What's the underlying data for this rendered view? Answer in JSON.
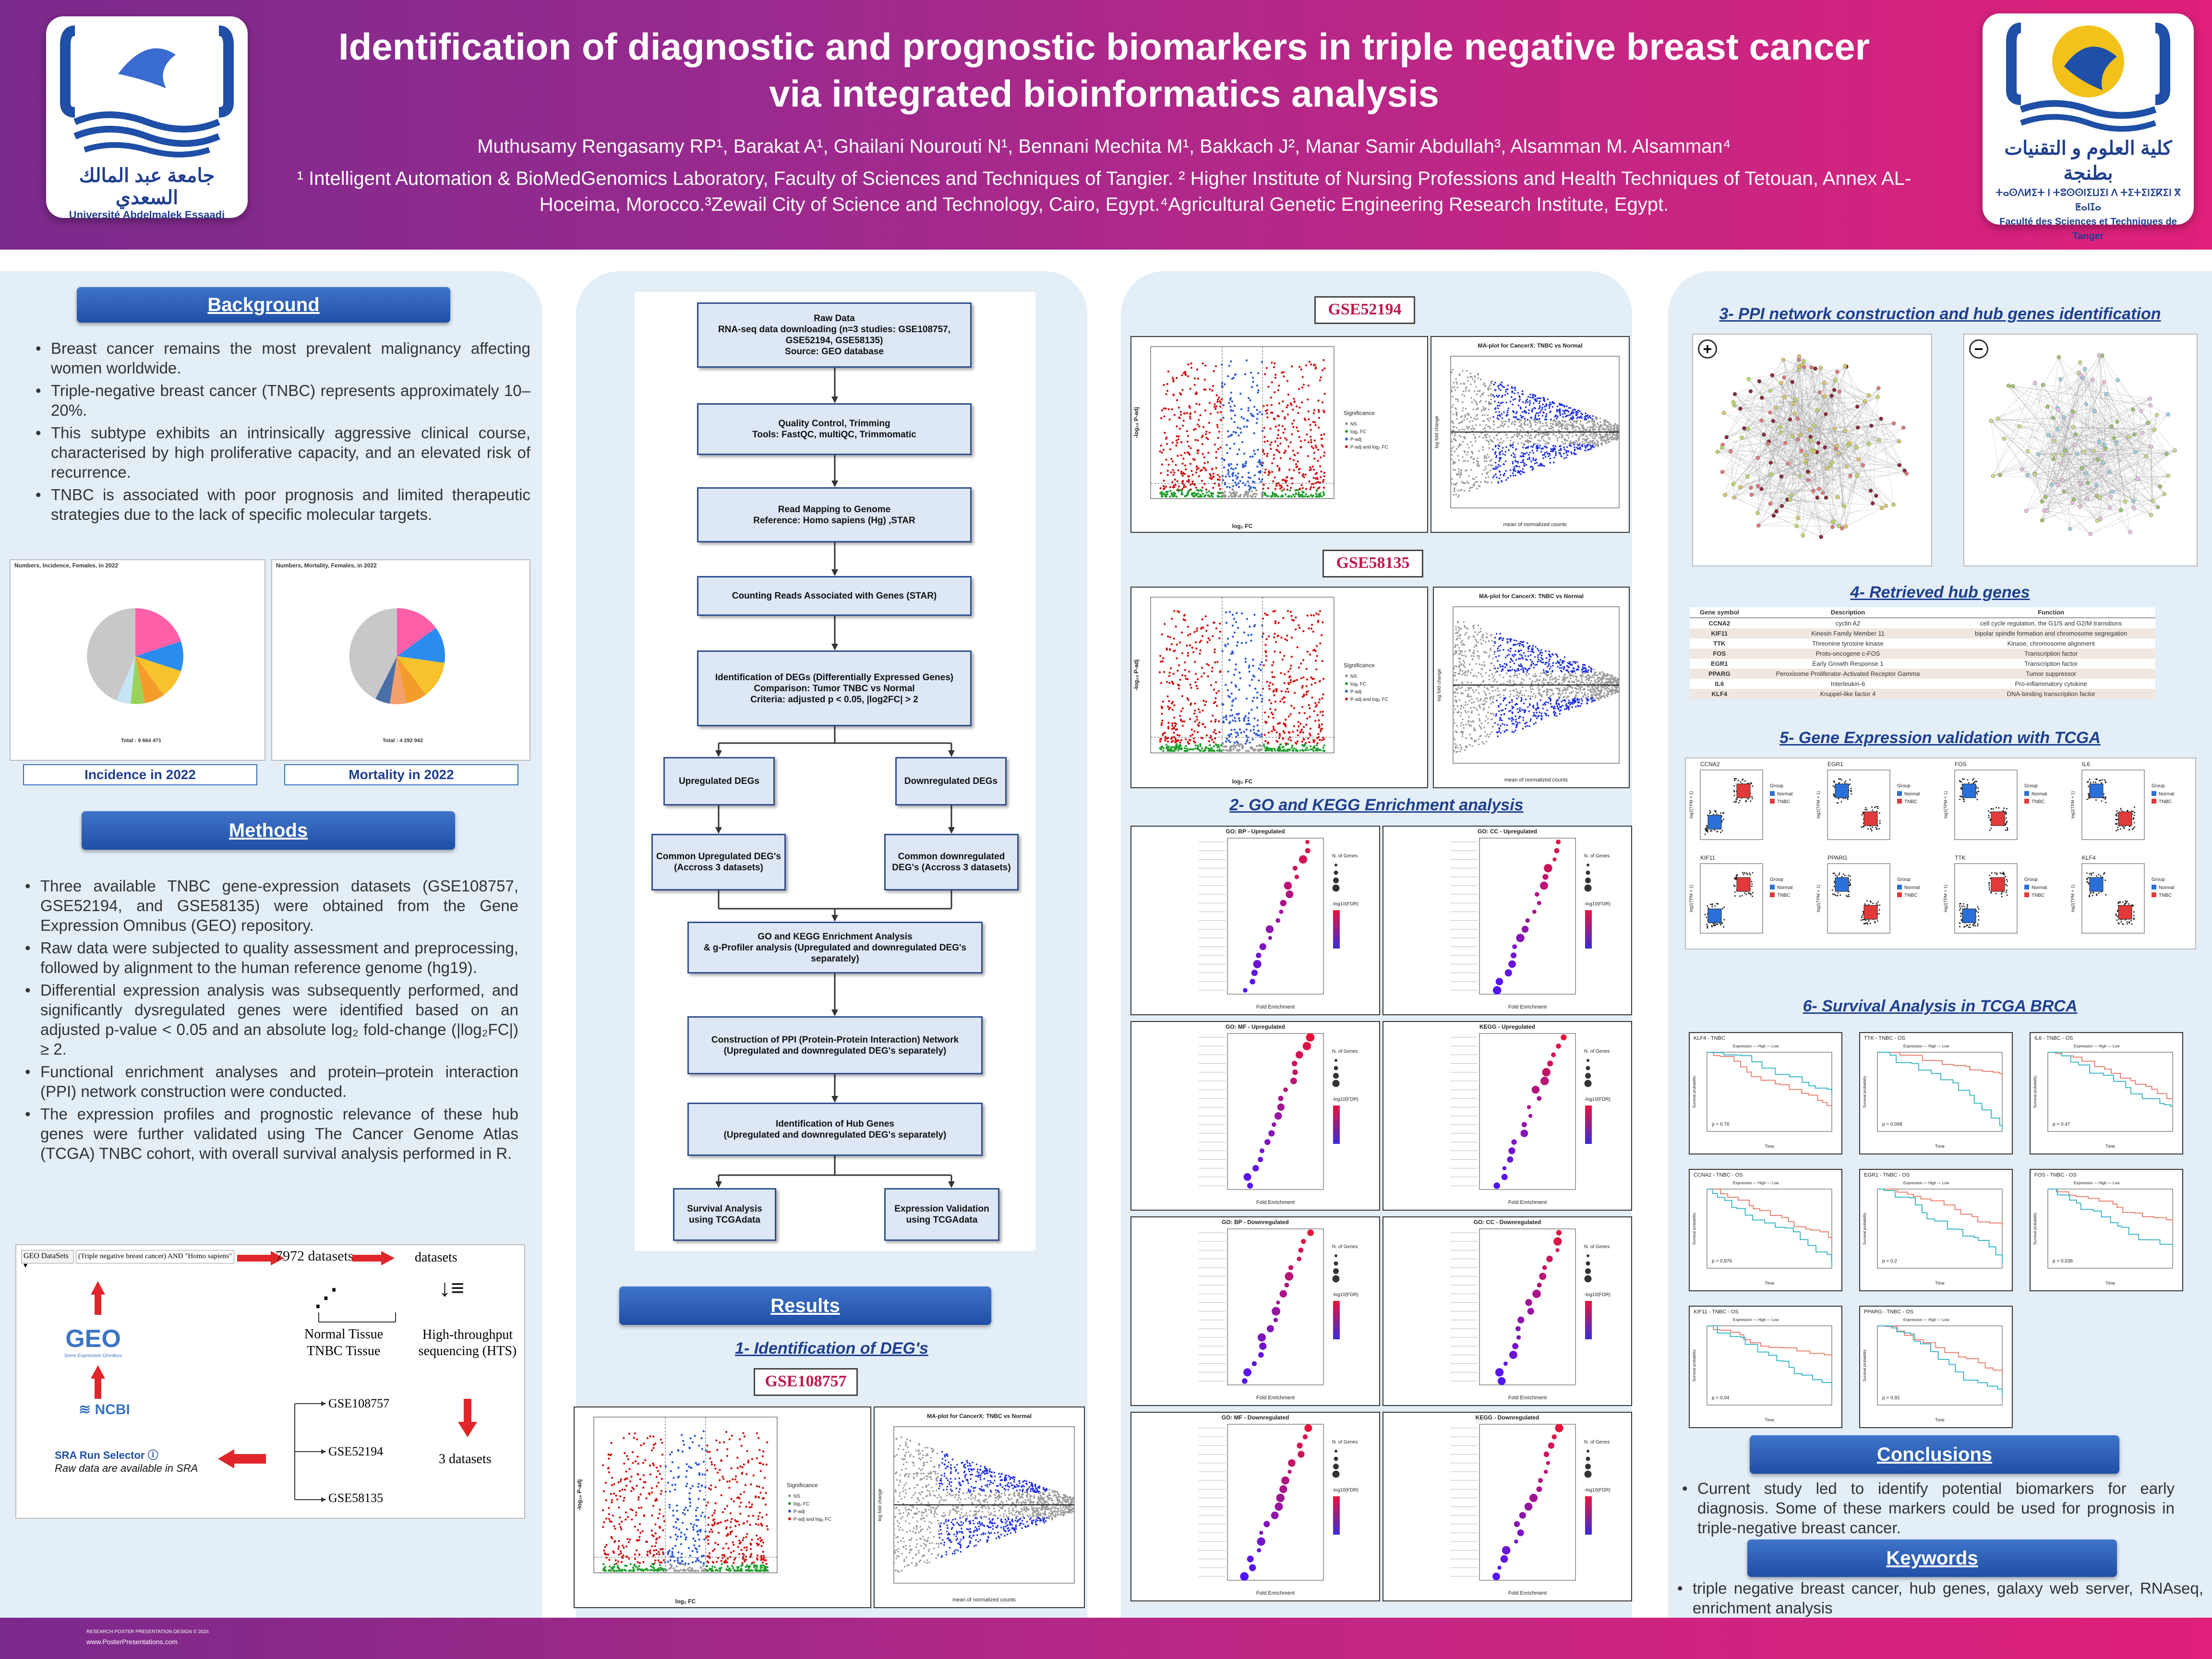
{
  "header": {
    "title_line1": "Identification of diagnostic and prognostic biomarkers in triple negative breast cancer",
    "title_line2": "via integrated bioinformatics analysis",
    "authors": "Muthusamy Rengasamy RP¹, Barakat A¹, Ghailani Nourouti N¹, Bennani Mechita M¹, Bakkach J², Manar Samir Abdullah³, Alsamman M. Alsamman⁴",
    "affiliations": "¹ Intelligent Automation & BioMedGenomics Laboratory, Faculty of Sciences and Techniques of Tangier. ² Higher Institute of Nursing Professions and Health Techniques of Tetouan, Annex AL-Hoceima, Morocco.³Zewail City of Science and Technology, Cairo, Egypt.⁴Agricultural Genetic Engineering Research Institute, Egypt.",
    "left_logo_arabic": "جامعة عبد المالك السعدي",
    "left_logo_text": "Université Abdelmalek Essaadi",
    "right_logo_arabic": "كلية العلوم و التقنيات بطنجة",
    "right_logo_tifinagh": "ⵜⴰⵙⴷⵍⵉⵜ ⵏ ⵜⵓⵙⵙⵏⵉⵡⵉⵏ ⴷ ⵜⵉⵜⵉⵏⵉⴽⵉⵏ ⴳ ⵟⴰⵏⵊⴰ",
    "right_logo_text": "Faculté des Sciences et Techniques de Tanger"
  },
  "background": {
    "heading": "Background",
    "bullets": [
      "Breast cancer remains the most prevalent malignancy affecting women worldwide.",
      "Triple-negative breast cancer (TNBC) represents approximately 10–20%.",
      " This subtype exhibits an intrinsically aggressive clinical course, characterised by high proliferative capacity, and an elevated risk of recurrence.",
      "TNBC is associated with poor prognosis and limited therapeutic strategies due to the lack of specific molecular targets."
    ],
    "pie1_caption": "Incidence in 2022",
    "pie2_caption": "Mortality in 2022",
    "pie1_title": "Numbers, Incidence, Females, in 2022",
    "pie2_title": "Numbers, Mortality, Females, in 2022",
    "pie1_total": "Total : 9 664 471",
    "pie2_total": "Total : 4 292 942"
  },
  "methods": {
    "heading": "Methods",
    "bullets": [
      "Three available TNBC gene-expression datasets (GSE108757, GSE52194, and GSE58135) were obtained from the Gene Expression Omnibus (GEO) repository.",
      "Raw data were subjected to quality assessment and preprocessing, followed by alignment to the human reference genome (hg19).",
      "Differential expression analysis was subsequently performed, and significantly dysregulated genes were identified based on an adjusted p-value < 0.05 and an absolute log₂ fold-change (|log₂FC|) ≥ 2.",
      "Functional enrichment analyses and protein–protein interaction (PPI) network construction were conducted.",
      "The expression profiles and prognostic relevance of these hub genes were further validated using The Cancer Genome Atlas (TCGA) TNBC cohort, with overall survival analysis performed in R."
    ],
    "geo_search_box": "GEO DataSets",
    "geo_query": "(Triple negative breast cancer) AND \"Homo sapiens\"",
    "datasets_found": "7972 datasets",
    "datasets_label": "datasets",
    "normal_tissue": "Normal Tissue",
    "tnbc_tissue": "TNBC Tissue",
    "hts": "High-throughput sequencing (HTS)",
    "geo_logo": "GEO",
    "geo_logo_sub": "Gene Expression Omnibus",
    "ncbi": "NCBI",
    "sra_selector": "SRA Run Selector",
    "sra_note": "Raw data are available in SRA",
    "gse_list": [
      "GSE108757",
      "GSE52194",
      "GSE58135"
    ],
    "three_datasets": "3 datasets"
  },
  "flowchart": {
    "raw": "Raw Data\nRNA-seq data downloading (n=3 studies: GSE108757, GSE52194, GSE58135)\nSource: GEO database",
    "qc": "Quality Control, Trimming\nTools: FastQC, multiQC, Trimmomatic",
    "map": "Read Mapping to Genome\nReference: Homo sapiens (Hg) ,STAR",
    "count": "Counting Reads Associated with Genes (STAR)",
    "deg": "Identification of DEGs (Differentially Expressed Genes)\nComparison:  Tumor TNBC vs Normal\nCriteria: adjusted p < 0.05, |log2FC| > 2",
    "up": "Upregulated DEGs",
    "down": "Downregulated DEGs",
    "common_up": "Common Upregulated DEG's\n(Accross 3 datasets)",
    "common_down": "Common downregulated DEG's  (Accross 3 datasets)",
    "go": "GO and KEGG Enrichment Analysis\n& g-Profiler analysis (Upregulated and downregulated DEG's separately)",
    "ppi": "Construction of PPI (Protein-Protein Interaction) Network\n(Upregulated and downregulated DEG's separately)",
    "hub": "Identification of Hub Genes\n(Upregulated and downregulated DEG's separately)",
    "surv": "Survival Analysis using TCGAdata",
    "expr": "Expression Validation using TCGAdata"
  },
  "results": {
    "heading": "Results",
    "sub1": "1- Identification of DEG's",
    "sub2": "2- GO and KEGG Enrichment analysis",
    "gse_labels": [
      "GSE108757",
      "GSE52194",
      "GSE58135"
    ],
    "ma_title": "MA-plot for CancerX: TNBC vs Normal",
    "ma_xlabel": "mean of normalized counts",
    "ma_ylabel": "log fold change",
    "volcano_xlabel": "log₂ FC",
    "volcano_ylabel": "-log₁₀ P-adj",
    "volcano_legend_title": "Significance",
    "volcano_legend": [
      "NS",
      "log₂ FC",
      "P-adj",
      "P-adj and log₂ FC"
    ],
    "go_panels": [
      "GO: BP - Upregulated",
      "GO: CC - Upregulated",
      "GO: MF - Upregulated",
      "KEGG - Upregulated",
      "GO: BP - Downregulated",
      "GO: CC - Downregulated",
      "GO: MF - Downregulated",
      "KEGG - Downregulated"
    ],
    "go_xlabel": "Fold Enrichment",
    "go_legend_size": "N. of Genes",
    "go_legend_color": "-log10(FDR)"
  },
  "ppi": {
    "sub3": "3- PPI network construction and hub genes identification",
    "plus": "+",
    "minus": "−"
  },
  "hub": {
    "sub4": "4- Retrieved hub genes",
    "columns": [
      "Gene symbol",
      "Description",
      "Function"
    ],
    "rows": [
      [
        "CCNA2",
        "cyclin A2",
        "cell cycle regulation, the G1/S and G2/M transitions"
      ],
      [
        "KIF11",
        "Kinesin Family Member 11",
        "bipolar spindle formation and chromosome segregation"
      ],
      [
        "TTK",
        "Threonine tyrosine kinase",
        "Kinase, chromosome alignment"
      ],
      [
        "FOS",
        "Proto-oncogene c-FOS",
        "Transcription factor"
      ],
      [
        "EGR1",
        "Early Growth Response 1",
        "Transcription factor"
      ],
      [
        "PPARG",
        "Peroxisome Proliferator-Activated Receptor Gamma",
        "Tumor suppressor"
      ],
      [
        "IL6",
        "Interleukin-6",
        "Pro-inflammatory cytokine"
      ],
      [
        "KLF4",
        "Kruppel-like factor 4",
        "DNA-binding transcription factor"
      ]
    ]
  },
  "expression": {
    "sub5": "5- Gene Expression validation with TCGA",
    "genes": [
      "CCNA2",
      "EGR1",
      "FOS",
      "IL6",
      "KIF11",
      "PPARG",
      "TTK",
      "KLF4"
    ],
    "group_label": "Group",
    "groups": [
      "Normal",
      "TNBC"
    ],
    "ylabel": "log2(TPM + 1)"
  },
  "survival": {
    "sub6": "6- Survival Analysis in TCGA BRCA",
    "panels": [
      "KLF4 - TNBC",
      "TTK - TNBC - OS",
      "IL6 - TNBC - OS",
      "CCNA2 - TNBC - OS",
      "EGR1 - TNBC - OS",
      "FOS - TNBC - OS",
      "KIF11 - TNBC - OS",
      "PPARG - TNBC - OS"
    ],
    "pvals": [
      "p = 0.76",
      "p = 0.068",
      "p = 0.47",
      "p = 0.876",
      "p = 0.2",
      "p = 0.038",
      "p = 0.04",
      "p = 0.92"
    ],
    "ylabel": "Survival probability",
    "xlabel": "Time",
    "legend": [
      "Expression",
      "High",
      "Low"
    ]
  },
  "conclusions": {
    "heading": "Conclusions",
    "text": "Current study led to identify potential biomarkers for early diagnosis. Some of these markers could be used for prognosis in triple-negative breast cancer."
  },
  "keywords": {
    "heading": "Keywords",
    "text": "triple negative breast cancer, hub genes, galaxy web server, RNAseq, enrichment analysis"
  },
  "footer": {
    "line1": "RESEARCH POSTER PRESENTATION DESIGN © 2024",
    "line2": "www.PosterPresentations.com"
  },
  "colors": {
    "header_start": "#7a2a8c",
    "header_end": "#e0207a",
    "section_button": "#2a5cb8",
    "column_bg": "#e3eef7",
    "subheading": "#1f3f8f",
    "gse_text": "#c0174a"
  }
}
